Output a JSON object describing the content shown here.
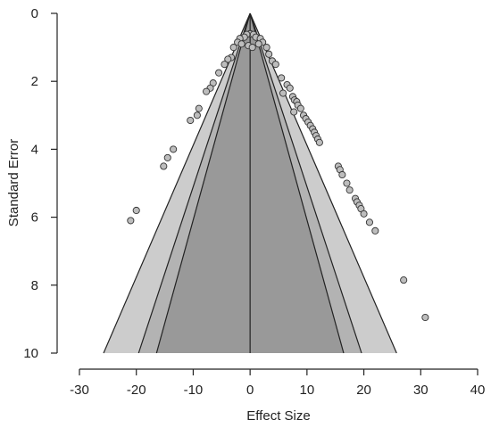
{
  "chart_data": {
    "type": "scatter",
    "subtype": "funnel-plot",
    "title": "",
    "xlabel": "Effect Size",
    "ylabel": "Standard Error",
    "xlim": [
      -30,
      40
    ],
    "ylim": [
      0,
      10
    ],
    "y_inverted": true,
    "x_ticks": [
      -30,
      -20,
      -10,
      0,
      10,
      20,
      30,
      40
    ],
    "y_ticks": [
      0,
      2,
      4,
      6,
      8,
      10
    ],
    "grid": false,
    "legend": "none",
    "center": 0,
    "contour_z_values": [
      1.645,
      1.96,
      2.576
    ],
    "colors": {
      "outer_region": "#cccccc",
      "middle_region": "#b3b3b3",
      "inner_region": "#999999",
      "line": "#222222",
      "point_fill": "#bdbdbd",
      "point_stroke": "#333333"
    },
    "points": [
      {
        "x": 0.0,
        "y": 0.6
      },
      {
        "x": -0.6,
        "y": 0.62
      },
      {
        "x": 0.6,
        "y": 0.62
      },
      {
        "x": -1.0,
        "y": 0.7
      },
      {
        "x": 1.0,
        "y": 0.7
      },
      {
        "x": -1.8,
        "y": 0.74
      },
      {
        "x": 1.8,
        "y": 0.74
      },
      {
        "x": -2.2,
        "y": 0.85
      },
      {
        "x": 2.2,
        "y": 0.85
      },
      {
        "x": -1.5,
        "y": 0.9
      },
      {
        "x": 1.5,
        "y": 0.9
      },
      {
        "x": -0.3,
        "y": 0.95
      },
      {
        "x": 0.4,
        "y": 1.0
      },
      {
        "x": -2.9,
        "y": 1.0
      },
      {
        "x": 2.9,
        "y": 1.0
      },
      {
        "x": -3.3,
        "y": 1.3
      },
      {
        "x": 3.3,
        "y": 1.2
      },
      {
        "x": -3.9,
        "y": 1.35
      },
      {
        "x": 3.9,
        "y": 1.4
      },
      {
        "x": -4.5,
        "y": 1.5
      },
      {
        "x": 4.5,
        "y": 1.5
      },
      {
        "x": -5.5,
        "y": 1.75
      },
      {
        "x": 5.5,
        "y": 1.9
      },
      {
        "x": -6.5,
        "y": 2.05
      },
      {
        "x": 6.5,
        "y": 2.1
      },
      {
        "x": -7.0,
        "y": 2.2
      },
      {
        "x": 7.0,
        "y": 2.2
      },
      {
        "x": -7.7,
        "y": 2.3
      },
      {
        "x": 5.8,
        "y": 2.35
      },
      {
        "x": 7.5,
        "y": 2.45
      },
      {
        "x": 7.8,
        "y": 2.55
      },
      {
        "x": 8.2,
        "y": 2.6
      },
      {
        "x": 8.4,
        "y": 2.7
      },
      {
        "x": 8.9,
        "y": 2.8
      },
      {
        "x": -9.0,
        "y": 2.8
      },
      {
        "x": 7.7,
        "y": 2.9
      },
      {
        "x": -9.3,
        "y": 3.0
      },
      {
        "x": 9.4,
        "y": 3.0
      },
      {
        "x": 9.8,
        "y": 3.1
      },
      {
        "x": -10.5,
        "y": 3.15
      },
      {
        "x": 10.2,
        "y": 3.2
      },
      {
        "x": 10.6,
        "y": 3.3
      },
      {
        "x": 11.0,
        "y": 3.4
      },
      {
        "x": 11.3,
        "y": 3.5
      },
      {
        "x": 11.6,
        "y": 3.6
      },
      {
        "x": 11.9,
        "y": 3.7
      },
      {
        "x": 12.2,
        "y": 3.8
      },
      {
        "x": -13.5,
        "y": 4.0
      },
      {
        "x": -14.5,
        "y": 4.25
      },
      {
        "x": -15.2,
        "y": 4.5
      },
      {
        "x": 15.5,
        "y": 4.5
      },
      {
        "x": 15.8,
        "y": 4.6
      },
      {
        "x": 16.2,
        "y": 4.75
      },
      {
        "x": 17.0,
        "y": 5.0
      },
      {
        "x": 17.5,
        "y": 5.2
      },
      {
        "x": 18.5,
        "y": 5.45
      },
      {
        "x": 18.8,
        "y": 5.55
      },
      {
        "x": 19.2,
        "y": 5.65
      },
      {
        "x": -20.0,
        "y": 5.8
      },
      {
        "x": 19.5,
        "y": 5.75
      },
      {
        "x": 20.0,
        "y": 5.9
      },
      {
        "x": -21.0,
        "y": 6.1
      },
      {
        "x": 21.0,
        "y": 6.15
      },
      {
        "x": 22.0,
        "y": 6.4
      },
      {
        "x": 27.0,
        "y": 7.85
      },
      {
        "x": 30.8,
        "y": 8.95
      }
    ]
  }
}
